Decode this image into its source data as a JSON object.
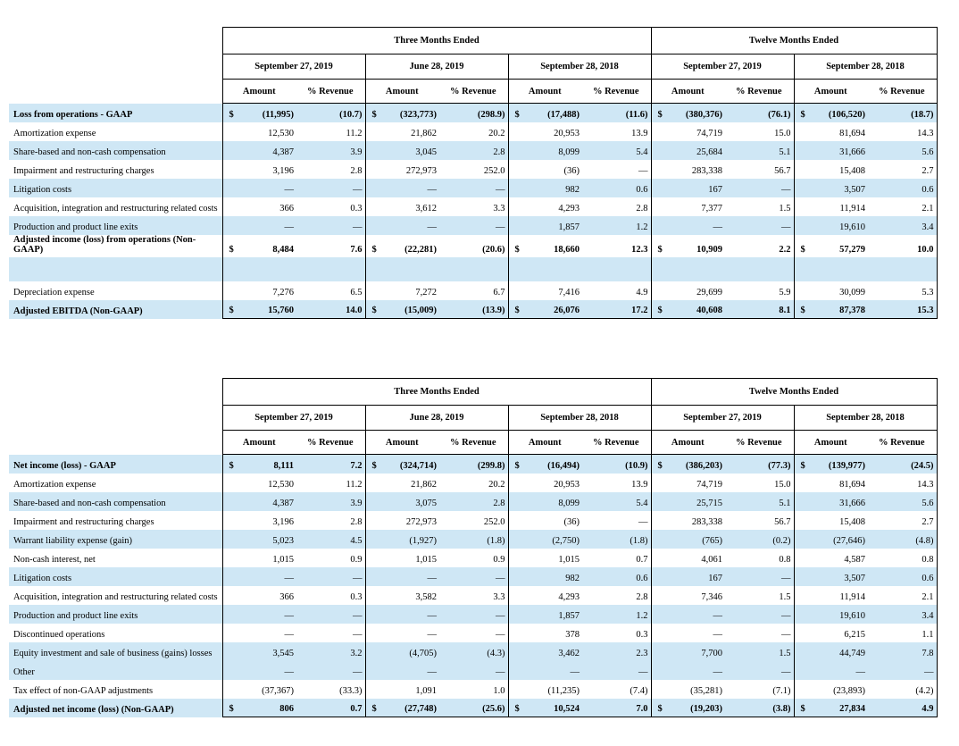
{
  "currency_symbol": "$",
  "tables": [
    {
      "groups": [
        {
          "label": "Three Months Ended",
          "periods": [
            "September 27, 2019",
            "June 28, 2019",
            "September 28, 2018"
          ]
        },
        {
          "label": "Twelve Months Ended",
          "periods": [
            "September 27, 2019",
            "September 28, 2018"
          ]
        }
      ],
      "columns": [
        "Amount",
        "% Revenue"
      ],
      "rows": [
        {
          "label": "Loss from operations - GAAP",
          "currency": true,
          "bold": true,
          "shaded": true,
          "cells": [
            [
              "(11,995)",
              "(10.7)"
            ],
            [
              "(323,773)",
              "(298.9)"
            ],
            [
              "(17,488)",
              "(11.6)"
            ],
            [
              "(380,376)",
              "(76.1)"
            ],
            [
              "(106,520)",
              "(18.7)"
            ]
          ]
        },
        {
          "label": "Amortization expense",
          "cells": [
            [
              "12,530",
              "11.2"
            ],
            [
              "21,862",
              "20.2"
            ],
            [
              "20,953",
              "13.9"
            ],
            [
              "74,719",
              "15.0"
            ],
            [
              "81,694",
              "14.3"
            ]
          ]
        },
        {
          "label": "Share-based and non-cash compensation",
          "shaded": true,
          "cells": [
            [
              "4,387",
              "3.9"
            ],
            [
              "3,045",
              "2.8"
            ],
            [
              "8,099",
              "5.4"
            ],
            [
              "25,684",
              "5.1"
            ],
            [
              "31,666",
              "5.6"
            ]
          ]
        },
        {
          "label": "Impairment and restructuring charges",
          "cells": [
            [
              "3,196",
              "2.8"
            ],
            [
              "272,973",
              "252.0"
            ],
            [
              "(36)",
              "—"
            ],
            [
              "283,338",
              "56.7"
            ],
            [
              "15,408",
              "2.7"
            ]
          ]
        },
        {
          "label": "Litigation costs",
          "shaded": true,
          "cells": [
            [
              "—",
              "—"
            ],
            [
              "—",
              "—"
            ],
            [
              "982",
              "0.6"
            ],
            [
              "167",
              "—"
            ],
            [
              "3,507",
              "0.6"
            ]
          ]
        },
        {
          "label": "Acquisition, integration and restructuring related costs",
          "cells": [
            [
              "366",
              "0.3"
            ],
            [
              "3,612",
              "3.3"
            ],
            [
              "4,293",
              "2.8"
            ],
            [
              "7,377",
              "1.5"
            ],
            [
              "11,914",
              "2.1"
            ]
          ]
        },
        {
          "label": "Production and product line exits",
          "shaded": true,
          "cells": [
            [
              "—",
              "—"
            ],
            [
              "—",
              "—"
            ],
            [
              "1,857",
              "1.2"
            ],
            [
              "—",
              "—"
            ],
            [
              "19,610",
              "3.4"
            ]
          ]
        },
        {
          "label": "Adjusted income (loss) from operations (Non-GAAP)",
          "currency": true,
          "bold": true,
          "cells": [
            [
              "8,484",
              "7.6"
            ],
            [
              "(22,281)",
              "(20.6)"
            ],
            [
              "18,660",
              "12.3"
            ],
            [
              "10,909",
              "2.2"
            ],
            [
              "57,279",
              "10.0"
            ]
          ]
        },
        {
          "shaded": true
        },
        {
          "label": "Depreciation expense",
          "cells": [
            [
              "7,276",
              "6.5"
            ],
            [
              "7,272",
              "6.7"
            ],
            [
              "7,416",
              "4.9"
            ],
            [
              "29,699",
              "5.9"
            ],
            [
              "30,099",
              "5.3"
            ]
          ]
        },
        {
          "label": "Adjusted EBITDA (Non-GAAP)",
          "currency": true,
          "bold": true,
          "shaded": true,
          "cells": [
            [
              "15,760",
              "14.0"
            ],
            [
              "(15,009)",
              "(13.9)"
            ],
            [
              "26,076",
              "17.2"
            ],
            [
              "40,608",
              "8.1"
            ],
            [
              "87,378",
              "15.3"
            ]
          ]
        }
      ]
    },
    {
      "groups": [
        {
          "label": "Three Months Ended",
          "periods": [
            "September 27, 2019",
            "June 28, 2019",
            "September 28, 2018"
          ]
        },
        {
          "label": "Twelve Months Ended",
          "periods": [
            "September 27, 2019",
            "September 28, 2018"
          ]
        }
      ],
      "columns": [
        "Amount",
        "% Revenue"
      ],
      "rows": [
        {
          "label": "Net income (loss) - GAAP",
          "currency": true,
          "bold": true,
          "shaded": true,
          "cells": [
            [
              "8,111",
              "7.2"
            ],
            [
              "(324,714)",
              "(299.8)"
            ],
            [
              "(16,494)",
              "(10.9)"
            ],
            [
              "(386,203)",
              "(77.3)"
            ],
            [
              "(139,977)",
              "(24.5)"
            ]
          ]
        },
        {
          "label": "Amortization expense",
          "cells": [
            [
              "12,530",
              "11.2"
            ],
            [
              "21,862",
              "20.2"
            ],
            [
              "20,953",
              "13.9"
            ],
            [
              "74,719",
              "15.0"
            ],
            [
              "81,694",
              "14.3"
            ]
          ]
        },
        {
          "label": "Share-based and non-cash compensation",
          "shaded": true,
          "cells": [
            [
              "4,387",
              "3.9"
            ],
            [
              "3,075",
              "2.8"
            ],
            [
              "8,099",
              "5.4"
            ],
            [
              "25,715",
              "5.1"
            ],
            [
              "31,666",
              "5.6"
            ]
          ]
        },
        {
          "label": "Impairment and restructuring charges",
          "cells": [
            [
              "3,196",
              "2.8"
            ],
            [
              "272,973",
              "252.0"
            ],
            [
              "(36)",
              "—"
            ],
            [
              "283,338",
              "56.7"
            ],
            [
              "15,408",
              "2.7"
            ]
          ]
        },
        {
          "label": "Warrant liability expense (gain)",
          "shaded": true,
          "cells": [
            [
              "5,023",
              "4.5"
            ],
            [
              "(1,927)",
              "(1.8)"
            ],
            [
              "(2,750)",
              "(1.8)"
            ],
            [
              "(765)",
              "(0.2)"
            ],
            [
              "(27,646)",
              "(4.8)"
            ]
          ]
        },
        {
          "label": "Non-cash interest, net",
          "cells": [
            [
              "1,015",
              "0.9"
            ],
            [
              "1,015",
              "0.9"
            ],
            [
              "1,015",
              "0.7"
            ],
            [
              "4,061",
              "0.8"
            ],
            [
              "4,587",
              "0.8"
            ]
          ]
        },
        {
          "label": "Litigation costs",
          "shaded": true,
          "cells": [
            [
              "—",
              "—"
            ],
            [
              "—",
              "—"
            ],
            [
              "982",
              "0.6"
            ],
            [
              "167",
              "—"
            ],
            [
              "3,507",
              "0.6"
            ]
          ]
        },
        {
          "label": "Acquisition, integration and restructuring related costs",
          "cells": [
            [
              "366",
              "0.3"
            ],
            [
              "3,582",
              "3.3"
            ],
            [
              "4,293",
              "2.8"
            ],
            [
              "7,346",
              "1.5"
            ],
            [
              "11,914",
              "2.1"
            ]
          ]
        },
        {
          "label": "Production and product line exits",
          "shaded": true,
          "cells": [
            [
              "—",
              "—"
            ],
            [
              "—",
              "—"
            ],
            [
              "1,857",
              "1.2"
            ],
            [
              "—",
              "—"
            ],
            [
              "19,610",
              "3.4"
            ]
          ]
        },
        {
          "label": "Discontinued operations",
          "cells": [
            [
              "—",
              "—"
            ],
            [
              "—",
              "—"
            ],
            [
              "378",
              "0.3"
            ],
            [
              "—",
              "—"
            ],
            [
              "6,215",
              "1.1"
            ]
          ]
        },
        {
          "label": "Equity investment and sale of business (gains) losses",
          "shaded": true,
          "cells": [
            [
              "3,545",
              "3.2"
            ],
            [
              "(4,705)",
              "(4.3)"
            ],
            [
              "3,462",
              "2.3"
            ],
            [
              "7,700",
              "1.5"
            ],
            [
              "44,749",
              "7.8"
            ]
          ]
        },
        {
          "label": "Other",
          "shaded": true,
          "cells": [
            [
              "—",
              "—"
            ],
            [
              "—",
              "—"
            ],
            [
              "—",
              "—"
            ],
            [
              "—",
              "—"
            ],
            [
              "—",
              "—"
            ]
          ]
        },
        {
          "label": "Tax effect of non-GAAP adjustments",
          "cells": [
            [
              "(37,367)",
              "(33.3)"
            ],
            [
              "1,091",
              "1.0"
            ],
            [
              "(11,235)",
              "(7.4)"
            ],
            [
              "(35,281)",
              "(7.1)"
            ],
            [
              "(23,893)",
              "(4.2)"
            ]
          ]
        },
        {
          "label": "Adjusted net income (loss) (Non-GAAP)",
          "currency": true,
          "bold": true,
          "shaded": true,
          "cells": [
            [
              "806",
              "0.7"
            ],
            [
              "(27,748)",
              "(25.6)"
            ],
            [
              "10,524",
              "7.0"
            ],
            [
              "(19,203)",
              "(3.8)"
            ],
            [
              "27,834",
              "4.9"
            ]
          ]
        }
      ]
    }
  ]
}
